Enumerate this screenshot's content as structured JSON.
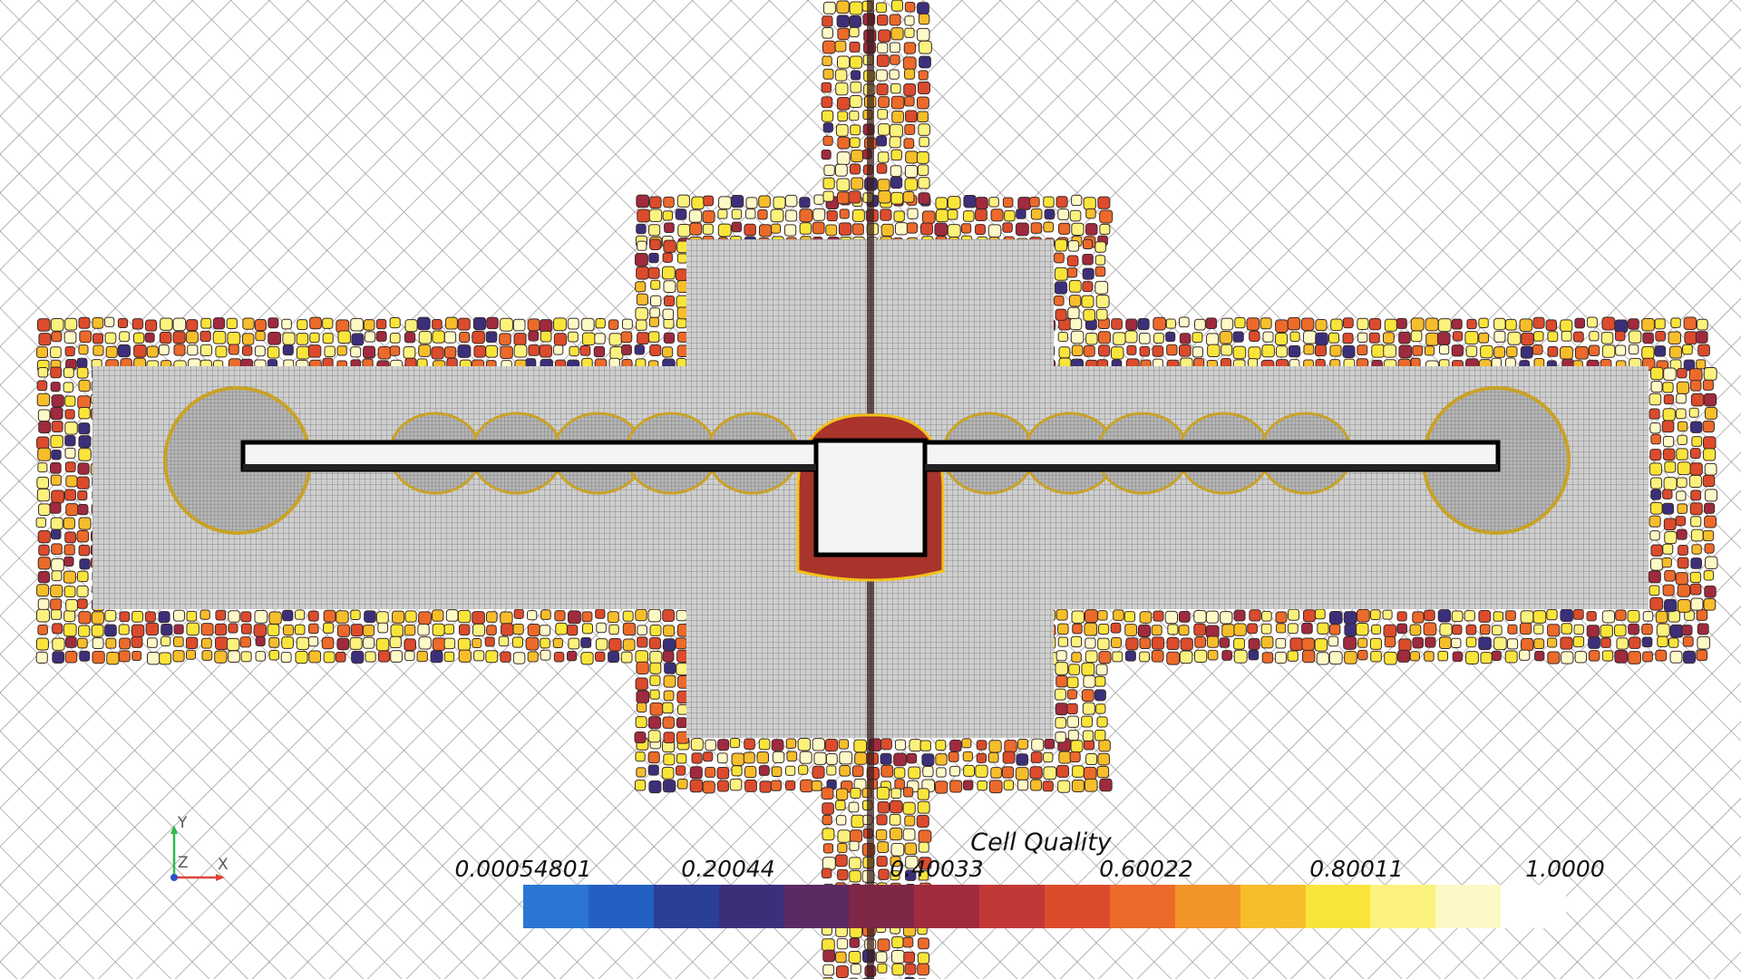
{
  "legend": {
    "title": "Cell Quality",
    "ticks": [
      "0.00054801",
      "0.20044",
      "0.40033",
      "0.60022",
      "0.80011",
      "1.0000"
    ],
    "range": [
      0.00054801,
      1.0
    ],
    "colormap": [
      "#2a76d2",
      "#2360c2",
      "#2a3f96",
      "#3c2f7a",
      "#5b2a63",
      "#7f2747",
      "#a02a3e",
      "#c23837",
      "#dc4b2c",
      "#ec6a2a",
      "#f39429",
      "#f7be2b",
      "#f9e53a",
      "#fbf27e",
      "#fdf9c6",
      "#ffffff"
    ]
  },
  "orientation_axes": {
    "y_label": "Y",
    "z_label": "Z",
    "x_label": "X"
  },
  "colors": {
    "background": "#ffffff",
    "mesh_line": "#9a9a9a",
    "refinement_fill": "#c8c8c8",
    "body_fill": "#f4f4f4",
    "body_outline": "#000000"
  }
}
